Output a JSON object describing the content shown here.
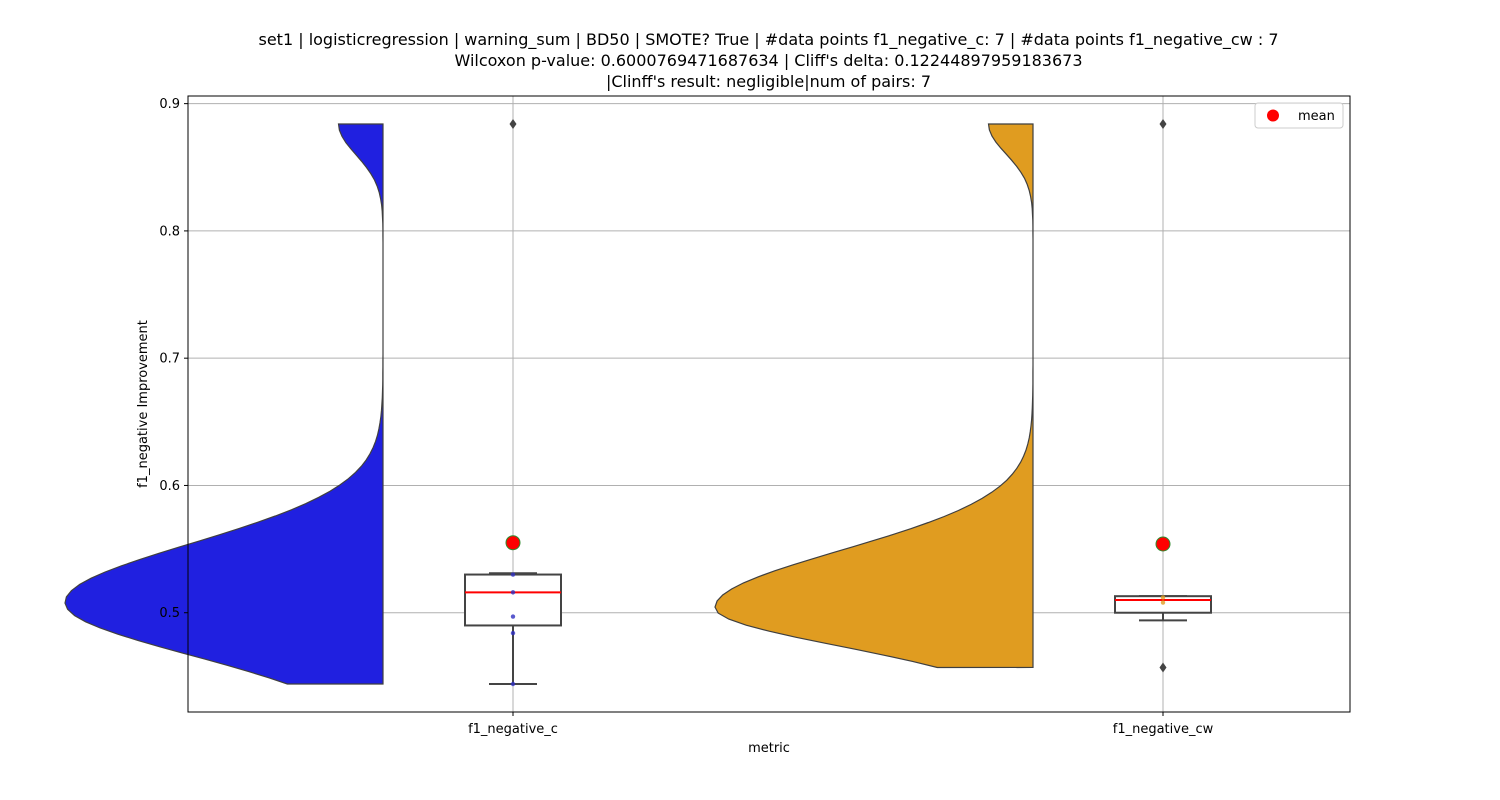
{
  "chart_data": {
    "type": "violin",
    "title_lines": [
      "set1 | logisticregression | warning_sum | BD50 | SMOTE? True | #data points f1_negative_c: 7 | #data points f1_negative_cw : 7",
      "Wilcoxon p-value: 0.6000769471687634 | Cliff's delta: 0.12244897959183673",
      "|Clinff's result: negligible|num of pairs: 7"
    ],
    "xlabel": "metric",
    "ylabel": "f1_negative Improvement",
    "ylim": [
      0.422,
      0.906
    ],
    "yticks": [
      0.5,
      0.6,
      0.7,
      0.8,
      0.9
    ],
    "ytick_labels": [
      "0.5",
      "0.6",
      "0.7",
      "0.8",
      "0.9"
    ],
    "grid": true,
    "legend": {
      "position": "top-right",
      "label": "mean",
      "marker_color": "#ff0000"
    },
    "categories": [
      "f1_negative_c",
      "f1_negative_cw"
    ],
    "series": [
      {
        "name": "f1_negative_c",
        "color": "#2020e0",
        "violin": {
          "min": 0.444,
          "max": 0.884,
          "peak": 0.508
        },
        "box": {
          "q1": 0.49,
          "median": 0.516,
          "q3": 0.53,
          "whisker_low": 0.444,
          "whisker_high": 0.531
        },
        "outliers": [
          0.884
        ],
        "points": [
          0.53,
          0.516,
          0.497,
          0.484,
          0.444
        ],
        "point_color": "#3030c0",
        "mean": 0.555
      },
      {
        "name": "f1_negative_cw",
        "color": "#e09c20",
        "violin": {
          "min": 0.457,
          "max": 0.884,
          "peak": 0.504
        },
        "box": {
          "q1": 0.5,
          "median": 0.51,
          "q3": 0.513,
          "whisker_low": 0.494,
          "whisker_high": 0.513
        },
        "outliers": [
          0.884,
          0.457
        ],
        "points": [
          0.512,
          0.508
        ],
        "point_color": "#e09c20",
        "mean": 0.554
      }
    ]
  }
}
